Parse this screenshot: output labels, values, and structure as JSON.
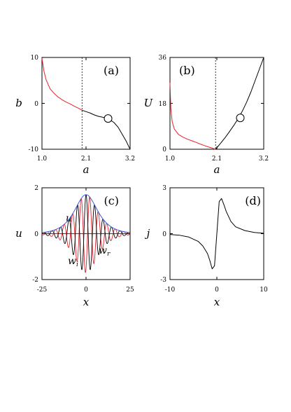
{
  "colors": {
    "black": "#000000",
    "red": "#e8202a",
    "blue": "#3b5bdb"
  },
  "chart_data": [
    {
      "panel": "(a)",
      "type": "line",
      "xlabel": "a",
      "ylabel": "b",
      "xlim": [
        1.0,
        3.2
      ],
      "ylim": [
        -10,
        10
      ],
      "xticks": [
        "1.0",
        "2.1",
        "3.2"
      ],
      "yticks": [
        "10",
        "0",
        "-10"
      ],
      "vline_x": 2.0,
      "marker": {
        "x": 2.65,
        "y": -3.3,
        "shape": "open-circle"
      },
      "series": [
        {
          "color": "red",
          "x": [
            1.0,
            1.05,
            1.1,
            1.2,
            1.3,
            1.4,
            1.5,
            1.6,
            1.7,
            1.8,
            1.9,
            2.0
          ],
          "y": [
            9.8,
            7.0,
            5.2,
            3.2,
            2.2,
            1.4,
            0.8,
            0.3,
            -0.1,
            -0.6,
            -1.0,
            -1.5
          ]
        },
        {
          "color": "black",
          "x": [
            2.0,
            2.1,
            2.2,
            2.3,
            2.4,
            2.5,
            2.6,
            2.7,
            2.8,
            2.9,
            3.0,
            3.1,
            3.2
          ],
          "y": [
            -1.5,
            -1.8,
            -2.1,
            -2.5,
            -2.8,
            -3.0,
            -3.2,
            -3.6,
            -4.2,
            -5.2,
            -6.7,
            -8.2,
            -10.0
          ]
        }
      ]
    },
    {
      "panel": "(b)",
      "type": "line",
      "xlabel": "a",
      "ylabel": "U",
      "xlim": [
        1.0,
        3.2
      ],
      "ylim": [
        0,
        36
      ],
      "xticks": [
        "1.0",
        "2.1",
        "3.2"
      ],
      "yticks": [
        "36",
        "18",
        "0"
      ],
      "vline_x": 2.07,
      "marker": {
        "x": 2.65,
        "y": 12.3,
        "shape": "open-circle"
      },
      "series": [
        {
          "color": "red",
          "x": [
            1.0,
            1.02,
            1.05,
            1.1,
            1.2,
            1.3,
            1.4,
            1.5,
            1.6,
            1.7,
            1.8,
            1.9,
            2.0,
            2.07
          ],
          "y": [
            26.0,
            16.0,
            11.0,
            8.0,
            5.8,
            4.8,
            4.0,
            3.4,
            2.8,
            2.1,
            1.5,
            0.9,
            0.4,
            0.0
          ]
        },
        {
          "color": "black",
          "x": [
            2.07,
            2.2,
            2.3,
            2.4,
            2.5,
            2.6,
            2.7,
            2.8,
            2.9,
            3.0,
            3.1,
            3.2
          ],
          "y": [
            0.0,
            2.6,
            4.7,
            7.0,
            9.4,
            12.0,
            15.0,
            18.5,
            22.5,
            27.0,
            31.5,
            36.0
          ]
        }
      ]
    },
    {
      "panel": "(c)",
      "type": "line",
      "xlabel": "x",
      "ylabel": "u",
      "xlim": [
        -25,
        25
      ],
      "ylim": [
        -2,
        2
      ],
      "xticks": [
        "-25",
        "0",
        "25"
      ],
      "yticks": [
        "2",
        "0",
        "-2"
      ],
      "annotations": [
        {
          "text": "u",
          "sub": ""
        },
        {
          "text": "w",
          "sub": "r"
        },
        {
          "text": "w",
          "sub": "i"
        }
      ],
      "series": [
        {
          "color": "blue",
          "formula": "u(x) = 1.7 / cosh(0.17 x)"
        },
        {
          "color": "black",
          "formula": "w_r(x) = u(x) cos(1.3 x)"
        },
        {
          "color": "red",
          "formula": "w_i(x) = -u(x) cos(1.3 x + 0.45)"
        }
      ]
    },
    {
      "panel": "(d)",
      "type": "line",
      "xlabel": "x",
      "ylabel": "j",
      "xlim": [
        -10,
        10
      ],
      "ylim": [
        -3,
        3
      ],
      "xticks": [
        "-10",
        "0",
        "10"
      ],
      "yticks": [
        "3",
        "0",
        "-3"
      ],
      "series": [
        {
          "color": "black",
          "x": [
            -10,
            -8,
            -6,
            -4,
            -3,
            -2,
            -1.5,
            -1,
            -0.5,
            0,
            0.5,
            1,
            1.5,
            2,
            3,
            4,
            6,
            8,
            10
          ],
          "y": [
            -0.05,
            -0.1,
            -0.22,
            -0.5,
            -0.8,
            -1.3,
            -1.75,
            -2.3,
            -2.1,
            0.0,
            2.1,
            2.3,
            1.9,
            1.45,
            0.8,
            0.45,
            0.2,
            0.08,
            0.03
          ]
        }
      ]
    }
  ]
}
